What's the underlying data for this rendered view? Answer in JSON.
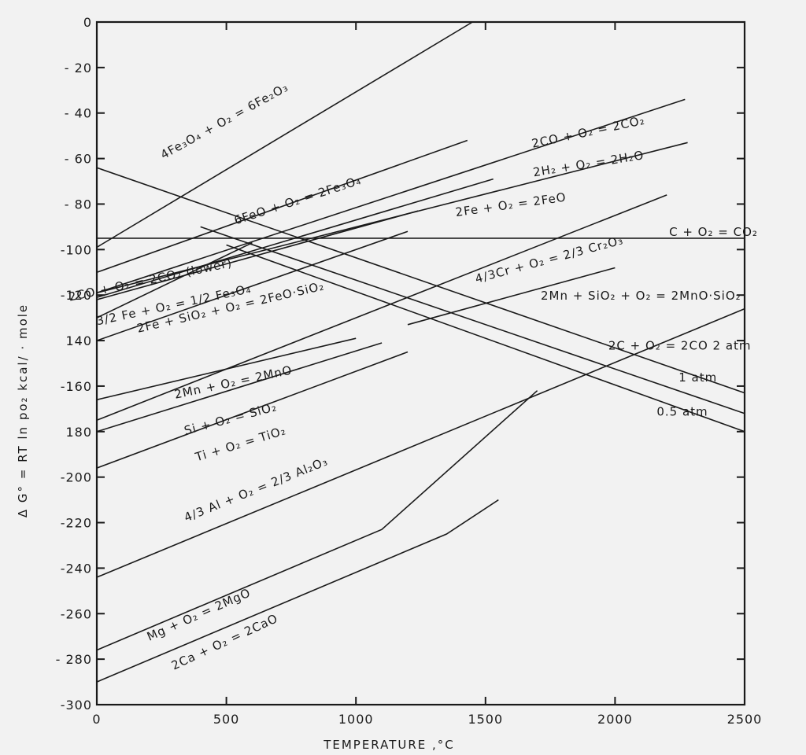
{
  "chart_data": {
    "type": "line",
    "xlabel": "TEMPERATURE ,°C",
    "ylabel": "Δ G° = RT ln po₂ kcal/  · mole",
    "xlim": [
      0,
      2500
    ],
    "ylim": [
      -300,
      0
    ],
    "x_ticks": [
      0,
      500,
      1000,
      1500,
      2000,
      2500
    ],
    "x_tick_labels": [
      "0",
      "500",
      "1000",
      "1500",
      "2000",
      "2500"
    ],
    "y_ticks": [
      0,
      -20,
      -40,
      -60,
      -80,
      -100,
      -120,
      -140,
      -160,
      -180,
      -200,
      -220,
      -240,
      -260,
      -280,
      -300
    ],
    "y_tick_labels": [
      "0",
      "- 20",
      "- 40",
      "- 60",
      "- 80",
      "-100",
      "-120",
      "140",
      "-160",
      "180",
      "-200",
      "-220",
      "-240",
      "-260",
      "- 280",
      "-300"
    ],
    "grid": false,
    "series": [
      {
        "name": "4Fe₃O₄ + O₂ = 6Fe₂O₃",
        "points": [
          [
            0,
            -99
          ],
          [
            1450,
            0
          ]
        ],
        "label_at": [
          500,
          -45
        ],
        "label_angle": -29
      },
      {
        "name": "6FeO + O₂ = 2Fe₃O₄",
        "points": [
          [
            0,
            -110
          ],
          [
            1430,
            -52
          ]
        ],
        "label_at": [
          780,
          -80
        ],
        "label_angle": -18
      },
      {
        "name": "2CO + O₂ = 2CO₂",
        "points": [
          [
            0,
            -119
          ],
          [
            2270,
            -34
          ]
        ],
        "label_at": [
          1900,
          -50
        ],
        "label_angle": -12
      },
      {
        "name": "2H₂ + O₂ = 2H₂O",
        "points": [
          [
            0,
            -119
          ],
          [
            2280,
            -53
          ]
        ],
        "label_at": [
          1900,
          -64
        ],
        "label_angle": -9
      },
      {
        "name": "2Fe + O₂ = 2FeO",
        "points": [
          [
            0,
            -121
          ],
          [
            1530,
            -69
          ]
        ],
        "label_at": [
          1600,
          -82
        ],
        "label_angle": -8
      },
      {
        "name": "C + O₂ = CO₂",
        "points": [
          [
            0,
            -95
          ],
          [
            2500,
            -95
          ]
        ],
        "label_at": [
          2380,
          -94
        ],
        "label_angle": 0
      },
      {
        "name": "2CO + O₂ = 2CO₂ (lower)",
        "points": [
          [
            0,
            -130
          ],
          [
            600,
            -97
          ]
        ],
        "label_at": [
          210,
          -115
        ],
        "label_angle": -12
      },
      {
        "name": "4/3Cr + O₂ = 2/3 Cr₂O₃",
        "points": [
          [
            0,
            -175
          ],
          [
            2200,
            -76
          ]
        ],
        "label_at": [
          1750,
          -106
        ],
        "label_angle": -15
      },
      {
        "name": "3/2 Fe + O₂ = 1/2 Fe₃O₄",
        "points": [
          [
            0,
            -122
          ],
          [
            1240,
            -83
          ]
        ],
        "label_at": [
          300,
          -126
        ],
        "label_angle": -12
      },
      {
        "name": "2Fe + SiO₂ + O₂ = 2FeO·SiO₂",
        "points": [
          [
            0,
            -140
          ],
          [
            1200,
            -92
          ]
        ],
        "label_at": [
          520,
          -127
        ],
        "label_angle": -13
      },
      {
        "name": "2Mn + SiO₂ + O₂ = 2MnO·SiO₂",
        "points": [
          [
            1200,
            -133
          ],
          [
            2000,
            -108
          ]
        ],
        "label_at": [
          2100,
          -122
        ],
        "label_angle": 0
      },
      {
        "name": "2Mn + O₂ = 2MnO",
        "points": [
          [
            0,
            -166
          ],
          [
            1000,
            -139
          ]
        ],
        "label_at": [
          530,
          -160
        ],
        "label_angle": -12
      },
      {
        "name": "Si + O₂ = SiO₂",
        "points": [
          [
            0,
            -180
          ],
          [
            1100,
            -141
          ]
        ],
        "label_at": [
          520,
          -176
        ],
        "label_angle": -15
      },
      {
        "name": "Ti + O₂ = TiO₂",
        "points": [
          [
            0,
            -196
          ],
          [
            1200,
            -145
          ]
        ],
        "label_at": [
          560,
          -187
        ],
        "label_angle": -17
      },
      {
        "name": "4/3 Al + O₂ = 2/3 Al₂O₃",
        "points": [
          [
            0,
            -244
          ],
          [
            2500,
            -126
          ]
        ],
        "label_at": [
          620,
          -207
        ],
        "label_angle": -22
      },
      {
        "name": "Mg + O₂ = 2MgO",
        "points": [
          [
            0,
            -276
          ],
          [
            1100,
            -223
          ],
          [
            1700,
            -162
          ]
        ],
        "label_at": [
          400,
          -262
        ],
        "label_angle": -24
      },
      {
        "name": "2Ca + O₂ = 2CaO",
        "points": [
          [
            0,
            -290
          ],
          [
            1350,
            -225
          ],
          [
            1550,
            -210
          ]
        ],
        "label_at": [
          500,
          -274
        ],
        "label_angle": -25
      },
      {
        "name": "2C + O₂ = 2CO  2 atm",
        "points": [
          [
            0,
            -64
          ],
          [
            2500,
            -163
          ]
        ],
        "label_at": [
          2250,
          -144
        ],
        "label_angle": 0
      },
      {
        "name": "1 atm",
        "points": [
          [
            400,
            -90
          ],
          [
            2500,
            -172
          ]
        ],
        "label_at": [
          2320,
          -158
        ],
        "label_angle": 0
      },
      {
        "name": "0.5 atm",
        "points": [
          [
            500,
            -98
          ],
          [
            2500,
            -180
          ]
        ],
        "label_at": [
          2260,
          -173
        ],
        "label_angle": 0
      }
    ]
  }
}
